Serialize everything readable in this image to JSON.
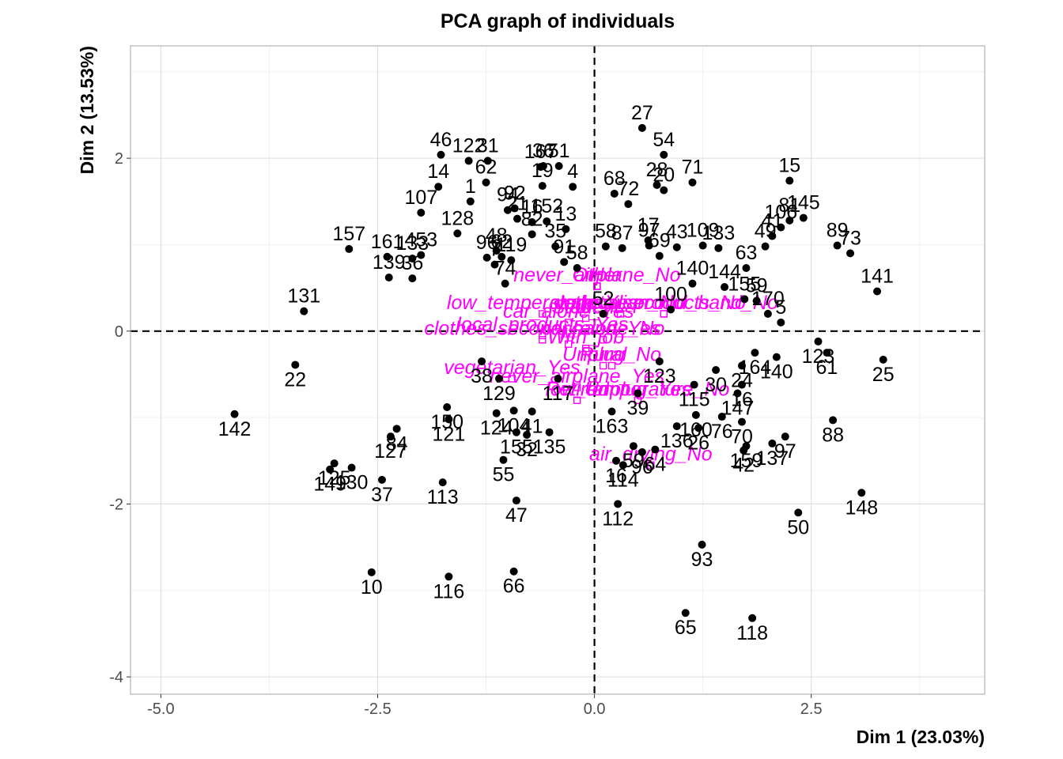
{
  "chart_data": {
    "type": "scatter",
    "title": "PCA graph of individuals",
    "xlabel": "Dim 1 (23.03%)",
    "ylabel": "Dim 2 (13.53%)",
    "xlim": [
      -5.35,
      4.5
    ],
    "ylim": [
      -4.2,
      3.3
    ],
    "xticks": [
      -5.0,
      -2.5,
      0.0,
      2.5
    ],
    "xtick_labels": [
      "-5.0",
      "-2.5",
      "0.0",
      "2.5"
    ],
    "yticks": [
      -4,
      -2,
      0,
      2
    ],
    "ytick_labels": [
      "-4",
      "-2",
      "0",
      "2"
    ],
    "grid": true,
    "reference_lines": [
      "x=0",
      "y=0"
    ],
    "colors": {
      "individuals": "#000000",
      "supplementary": "#ff00ff",
      "grid_major": "#dedede",
      "grid_minor": "#ededed",
      "panel_border": "#b3b3b3"
    },
    "individuals": [
      {
        "label": "27",
        "x": 0.55,
        "y": 2.35
      },
      {
        "label": "54",
        "x": 0.8,
        "y": 2.04
      },
      {
        "label": "46",
        "x": -1.77,
        "y": 2.04
      },
      {
        "label": "122",
        "x": -1.45,
        "y": 1.97
      },
      {
        "label": "31",
        "x": -1.23,
        "y": 1.97
      },
      {
        "label": "36",
        "x": -0.59,
        "y": 1.91
      },
      {
        "label": "51",
        "x": -0.41,
        "y": 1.91
      },
      {
        "label": "167",
        "x": -0.62,
        "y": 1.9
      },
      {
        "label": "15",
        "x": 2.25,
        "y": 1.74
      },
      {
        "label": "71",
        "x": 1.13,
        "y": 1.72
      },
      {
        "label": "28",
        "x": 0.72,
        "y": 1.69
      },
      {
        "label": "20",
        "x": 0.8,
        "y": 1.63
      },
      {
        "label": "62",
        "x": -1.25,
        "y": 1.72
      },
      {
        "label": "14",
        "x": -1.8,
        "y": 1.67
      },
      {
        "label": "4",
        "x": -0.25,
        "y": 1.67
      },
      {
        "label": "19",
        "x": -0.6,
        "y": 1.68
      },
      {
        "label": "68",
        "x": 0.23,
        "y": 1.59
      },
      {
        "label": "72",
        "x": 0.39,
        "y": 1.47
      },
      {
        "label": "1",
        "x": -1.43,
        "y": 1.5
      },
      {
        "label": "92",
        "x": -0.92,
        "y": 1.42
      },
      {
        "label": "94",
        "x": -1.0,
        "y": 1.4
      },
      {
        "label": "107",
        "x": -2.0,
        "y": 1.37
      },
      {
        "label": "145",
        "x": 2.41,
        "y": 1.31
      },
      {
        "label": "81",
        "x": 2.25,
        "y": 1.28
      },
      {
        "label": "106",
        "x": 2.15,
        "y": 1.2
      },
      {
        "label": "128",
        "x": -1.58,
        "y": 1.13
      },
      {
        "label": "21",
        "x": -0.89,
        "y": 1.3
      },
      {
        "label": "16",
        "x": -0.72,
        "y": 1.26
      },
      {
        "label": "152",
        "x": -0.55,
        "y": 1.27
      },
      {
        "label": "13",
        "x": -0.33,
        "y": 1.18
      },
      {
        "label": "82",
        "x": -0.72,
        "y": 1.12
      },
      {
        "label": "89",
        "x": 2.8,
        "y": 0.99
      },
      {
        "label": "73",
        "x": 2.95,
        "y": 0.9
      },
      {
        "label": "35",
        "x": -0.45,
        "y": 0.98
      },
      {
        "label": "17",
        "x": 0.62,
        "y": 1.05
      },
      {
        "label": "41",
        "x": 2.05,
        "y": 1.1
      },
      {
        "label": "157",
        "x": -2.83,
        "y": 0.95
      },
      {
        "label": "453",
        "x": -2.0,
        "y": 0.88
      },
      {
        "label": "48",
        "x": -1.13,
        "y": 0.93
      },
      {
        "label": "96",
        "x": -1.24,
        "y": 0.85
      },
      {
        "label": "62",
        "x": -1.07,
        "y": 0.86
      },
      {
        "label": "58",
        "x": 0.13,
        "y": 0.98
      },
      {
        "label": "87",
        "x": 0.32,
        "y": 0.96
      },
      {
        "label": "97",
        "x": 0.63,
        "y": 0.99
      },
      {
        "label": "43",
        "x": 0.95,
        "y": 0.97
      },
      {
        "label": "109",
        "x": 1.25,
        "y": 0.99
      },
      {
        "label": "133",
        "x": 1.43,
        "y": 0.96
      },
      {
        "label": "69",
        "x": 0.75,
        "y": 0.87
      },
      {
        "label": "49",
        "x": 1.97,
        "y": 0.98
      },
      {
        "label": "63",
        "x": 1.75,
        "y": 0.73
      },
      {
        "label": "161",
        "x": -2.39,
        "y": 0.86
      },
      {
        "label": "133",
        "x": -2.1,
        "y": 0.84
      },
      {
        "label": "139",
        "x": -2.37,
        "y": 0.62
      },
      {
        "label": "7",
        "x": -1.15,
        "y": 0.77
      },
      {
        "label": "119",
        "x": -0.96,
        "y": 0.82
      },
      {
        "label": "91",
        "x": -0.35,
        "y": 0.8
      },
      {
        "label": "58",
        "x": -0.2,
        "y": 0.73
      },
      {
        "label": "36",
        "x": -2.1,
        "y": 0.61
      },
      {
        "label": "141",
        "x": 3.26,
        "y": 0.46
      },
      {
        "label": "140",
        "x": 1.13,
        "y": 0.55
      },
      {
        "label": "144",
        "x": 1.5,
        "y": 0.51
      },
      {
        "label": "74",
        "x": -1.03,
        "y": 0.55
      },
      {
        "label": "59",
        "x": 1.87,
        "y": 0.35
      },
      {
        "label": "131",
        "x": -3.35,
        "y": 0.23
      },
      {
        "label": "155",
        "x": 1.73,
        "y": 0.37
      },
      {
        "label": "170",
        "x": 2.0,
        "y": 0.2
      },
      {
        "label": "5",
        "x": 2.15,
        "y": 0.1
      },
      {
        "label": "52",
        "x": 0.1,
        "y": 0.2
      },
      {
        "label": "100",
        "x": 0.88,
        "y": 0.25
      },
      {
        "label": "123",
        "x": 2.58,
        "y": -0.12
      },
      {
        "label": "61",
        "x": 2.68,
        "y": -0.25
      },
      {
        "label": "164",
        "x": 1.85,
        "y": -0.25
      },
      {
        "label": "140",
        "x": 2.1,
        "y": -0.3
      },
      {
        "label": "24",
        "x": 1.7,
        "y": -0.4
      },
      {
        "label": "25",
        "x": 3.33,
        "y": -0.33
      },
      {
        "label": "30",
        "x": 1.4,
        "y": -0.45
      },
      {
        "label": "123",
        "x": 0.75,
        "y": -0.35
      },
      {
        "label": "22",
        "x": -3.45,
        "y": -0.39
      },
      {
        "label": "142",
        "x": -4.15,
        "y": -0.96
      },
      {
        "label": "129",
        "x": -1.1,
        "y": -0.55
      },
      {
        "label": "117",
        "x": -0.42,
        "y": -0.55
      },
      {
        "label": "38",
        "x": -1.3,
        "y": -0.35
      },
      {
        "label": "115",
        "x": 1.15,
        "y": -0.62
      },
      {
        "label": "16",
        "x": 1.7,
        "y": -0.62
      },
      {
        "label": "147",
        "x": 1.65,
        "y": -0.72
      },
      {
        "label": "39",
        "x": 0.5,
        "y": -0.72
      },
      {
        "label": "150",
        "x": -1.7,
        "y": -0.88
      },
      {
        "label": "121",
        "x": -1.68,
        "y": -1.02
      },
      {
        "label": "124",
        "x": -1.13,
        "y": -0.95
      },
      {
        "label": "104",
        "x": -0.93,
        "y": -0.92
      },
      {
        "label": "41",
        "x": -0.72,
        "y": -0.93
      },
      {
        "label": "163",
        "x": 0.2,
        "y": -0.93
      },
      {
        "label": "160",
        "x": 1.17,
        "y": -0.97
      },
      {
        "label": "76",
        "x": 1.47,
        "y": -0.99
      },
      {
        "label": "70",
        "x": 1.7,
        "y": -1.05
      },
      {
        "label": "88",
        "x": 2.75,
        "y": -1.03
      },
      {
        "label": "136",
        "x": 0.95,
        "y": -1.1
      },
      {
        "label": "26",
        "x": 1.2,
        "y": -1.12
      },
      {
        "label": "84",
        "x": -2.28,
        "y": -1.13
      },
      {
        "label": "127",
        "x": -2.35,
        "y": -1.22
      },
      {
        "label": "155",
        "x": -0.9,
        "y": -1.17
      },
      {
        "label": "135",
        "x": -0.52,
        "y": -1.17
      },
      {
        "label": "32",
        "x": -0.78,
        "y": -1.2
      },
      {
        "label": "97",
        "x": 2.2,
        "y": -1.22
      },
      {
        "label": "159",
        "x": 1.75,
        "y": -1.33
      },
      {
        "label": "137",
        "x": 2.05,
        "y": -1.3
      },
      {
        "label": "42",
        "x": 1.72,
        "y": -1.38
      },
      {
        "label": "59",
        "x": 0.45,
        "y": -1.33
      },
      {
        "label": "96",
        "x": 0.55,
        "y": -1.4
      },
      {
        "label": "64",
        "x": 0.7,
        "y": -1.37
      },
      {
        "label": "125",
        "x": -3.0,
        "y": -1.53
      },
      {
        "label": "130",
        "x": -2.8,
        "y": -1.58
      },
      {
        "label": "149",
        "x": -3.05,
        "y": -1.6
      },
      {
        "label": "37",
        "x": -2.45,
        "y": -1.72
      },
      {
        "label": "113",
        "x": -1.75,
        "y": -1.75
      },
      {
        "label": "55",
        "x": -1.05,
        "y": -1.49
      },
      {
        "label": "16",
        "x": 0.25,
        "y": -1.5
      },
      {
        "label": "114",
        "x": 0.33,
        "y": -1.55
      },
      {
        "label": "47",
        "x": -0.9,
        "y": -1.96
      },
      {
        "label": "112",
        "x": 0.27,
        "y": -2.0
      },
      {
        "label": "50",
        "x": 2.35,
        "y": -2.1
      },
      {
        "label": "148",
        "x": 3.08,
        "y": -1.87
      },
      {
        "label": "93",
        "x": 1.24,
        "y": -2.47
      },
      {
        "label": "10",
        "x": -2.57,
        "y": -2.79
      },
      {
        "label": "116",
        "x": -1.68,
        "y": -2.84
      },
      {
        "label": "66",
        "x": -0.93,
        "y": -2.78
      },
      {
        "label": "65",
        "x": 1.05,
        "y": -3.26
      },
      {
        "label": "118",
        "x": 1.82,
        "y": -3.32
      }
    ],
    "supplementary": [
      {
        "label": "never_airplane_No",
        "x": 0.03,
        "y": 0.52
      },
      {
        "label": "Other",
        "x": 0.03,
        "y": 0.52
      },
      {
        "label": "H",
        "x": 0.03,
        "y": 0.52
      },
      {
        "label": "low_temperature_Yes",
        "x": -0.6,
        "y": 0.2
      },
      {
        "label": "vegetarian_No",
        "x": 0.3,
        "y": 0.2
      },
      {
        "label": "local_products_No",
        "x": 0.8,
        "y": 0.2
      },
      {
        "label": "clothes_second_hand_No",
        "x": 0.8,
        "y": 0.2
      },
      {
        "label": "car_alone_Yes",
        "x": -0.3,
        "y": 0.1
      },
      {
        "label": "Student",
        "x": -0.1,
        "y": 0.15
      },
      {
        "label": "local_products_Yes",
        "x": -0.6,
        "y": -0.05
      },
      {
        "label": "clothes_second_hand_Yes",
        "x": -0.6,
        "y": -0.1
      },
      {
        "label": "car_alone_No",
        "x": 0.1,
        "y": -0.1
      },
      {
        "label": "M",
        "x": -0.3,
        "y": -0.15
      },
      {
        "label": "With_job",
        "x": -0.1,
        "y": -0.2
      },
      {
        "label": "Rural",
        "x": 0.1,
        "y": -0.4
      },
      {
        "label": "Unplug_No",
        "x": 0.2,
        "y": -0.4
      },
      {
        "label": "vegetarian_Yes",
        "x": -0.95,
        "y": -0.55
      },
      {
        "label": "never_airplane_Yes",
        "x": -0.2,
        "y": -0.65
      },
      {
        "label": "Retired",
        "x": -0.2,
        "y": -0.8
      },
      {
        "label": "Unplug_Yes",
        "x": 0.5,
        "y": -0.8
      },
      {
        "label": "low_temperature_No",
        "x": 0.5,
        "y": -0.8
      },
      {
        "label": "air_drying_No",
        "x": 0.65,
        "y": -1.55
      }
    ]
  }
}
